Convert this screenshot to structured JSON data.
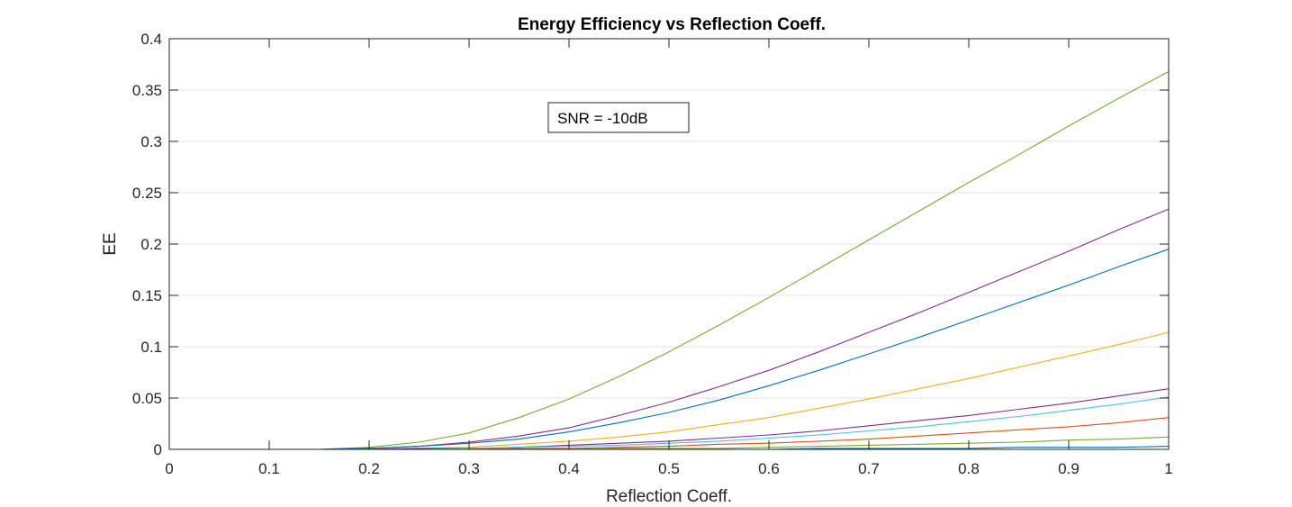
{
  "chart_data": {
    "type": "line",
    "title": "Energy Efficiency vs Reflection Coeff.",
    "xlabel": "Reflection Coeff.",
    "ylabel": "EE",
    "xlim": [
      0,
      1
    ],
    "ylim": [
      0,
      0.4
    ],
    "xticks": [
      0,
      0.1,
      0.2,
      0.3,
      0.4,
      0.5,
      0.6,
      0.7,
      0.8,
      0.9,
      1
    ],
    "xtick_labels": [
      "0",
      "0.1",
      "0.2",
      "0.3",
      "0.4",
      "0.5",
      "0.6",
      "0.7",
      "0.8",
      "0.9",
      "1"
    ],
    "yticks": [
      0,
      0.05,
      0.1,
      0.15,
      0.2,
      0.25,
      0.3,
      0.35,
      0.4
    ],
    "ytick_labels": [
      "0",
      "0.05",
      "0.1",
      "0.15",
      "0.2",
      "0.25",
      "0.3",
      "0.35",
      "0.4"
    ],
    "grid": "y",
    "annotation": "SNR = -10dB",
    "x": [
      0.05,
      0.1,
      0.15,
      0.2,
      0.25,
      0.3,
      0.35,
      0.4,
      0.45,
      0.5,
      0.55,
      0.6,
      0.65,
      0.7,
      0.75,
      0.8,
      0.85,
      0.9,
      0.95,
      1.0
    ],
    "series": [
      {
        "color": "#77ac30",
        "values": [
          0,
          0,
          0,
          0.002,
          0.007,
          0.016,
          0.031,
          0.049,
          0.071,
          0.095,
          0.121,
          0.148,
          0.176,
          0.204,
          0.232,
          0.26,
          0.287,
          0.315,
          0.342,
          0.368
        ]
      },
      {
        "color": "#7e2f8e",
        "values": [
          0,
          0,
          0,
          0.001,
          0.003,
          0.007,
          0.013,
          0.021,
          0.033,
          0.046,
          0.061,
          0.077,
          0.095,
          0.114,
          0.133,
          0.153,
          0.173,
          0.193,
          0.214,
          0.234
        ]
      },
      {
        "color": "#0072bd",
        "values": [
          0,
          0,
          0,
          0.001,
          0.003,
          0.006,
          0.01,
          0.017,
          0.026,
          0.036,
          0.048,
          0.062,
          0.077,
          0.093,
          0.109,
          0.126,
          0.143,
          0.16,
          0.178,
          0.195
        ]
      },
      {
        "color": "#edb120",
        "values": [
          0,
          0,
          0,
          0,
          0.001,
          0.002,
          0.005,
          0.008,
          0.012,
          0.017,
          0.024,
          0.031,
          0.04,
          0.049,
          0.059,
          0.069,
          0.08,
          0.091,
          0.102,
          0.114
        ]
      },
      {
        "color": "#7e2f8e",
        "values": [
          0,
          0,
          0,
          0,
          0.001,
          0.001,
          0.002,
          0.004,
          0.006,
          0.008,
          0.011,
          0.014,
          0.018,
          0.023,
          0.028,
          0.033,
          0.039,
          0.045,
          0.052,
          0.059
        ]
      },
      {
        "color": "#4dbeee",
        "values": [
          0,
          0,
          0,
          0,
          0,
          0.001,
          0.002,
          0.003,
          0.004,
          0.006,
          0.008,
          0.011,
          0.014,
          0.018,
          0.022,
          0.027,
          0.032,
          0.038,
          0.044,
          0.051
        ]
      },
      {
        "color": "#d95319",
        "values": [
          0,
          0,
          0,
          0,
          0,
          0,
          0.001,
          0.001,
          0.002,
          0.003,
          0.005,
          0.006,
          0.008,
          0.01,
          0.013,
          0.016,
          0.019,
          0.022,
          0.026,
          0.031
        ]
      },
      {
        "color": "#77ac30",
        "values": [
          0,
          0,
          0,
          0,
          0,
          0,
          0,
          0,
          0.001,
          0.001,
          0.001,
          0.002,
          0.003,
          0.004,
          0.005,
          0.006,
          0.007,
          0.009,
          0.01,
          0.012
        ]
      },
      {
        "color": "#0072bd",
        "values": [
          0,
          0,
          0,
          0,
          0,
          0,
          0,
          0,
          0,
          0,
          0,
          0,
          0.001,
          0.001,
          0.001,
          0.001,
          0.002,
          0.002,
          0.002,
          0.003
        ]
      }
    ]
  }
}
